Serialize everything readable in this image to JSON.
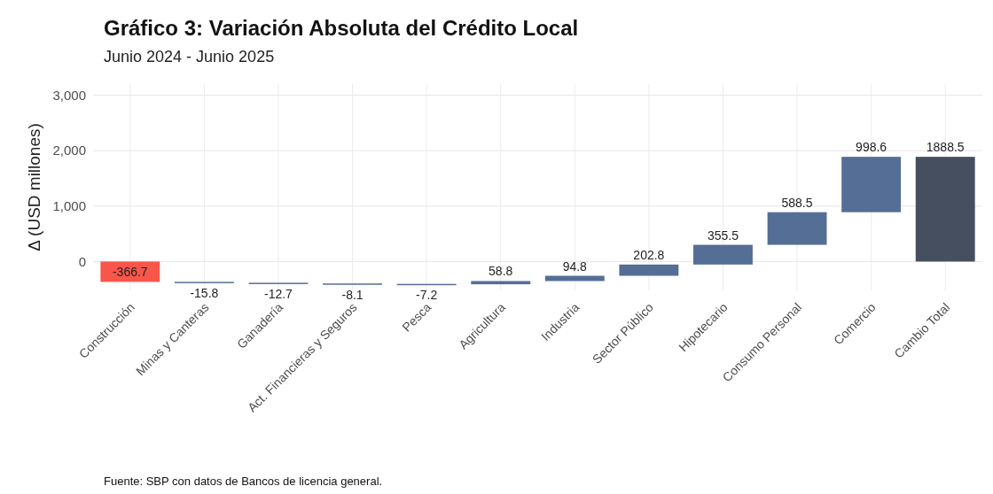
{
  "chart_data": {
    "type": "bar",
    "title": "Gráfico 3: Variación Absoluta del Crédito Local",
    "subtitle": "Junio 2024 - Junio 2025",
    "ylabel": "Δ (USD millones)",
    "categories": [
      "Construcción",
      "Minas y Canteras",
      "Ganadería",
      "Act. Financieras y Seguros",
      "Pesca",
      "Agricultura",
      "Industria",
      "Sector Público",
      "Hipotecario",
      "Consumo Personal",
      "Comercio",
      "Cambio Total"
    ],
    "values": [
      -366.7,
      -15.8,
      -12.7,
      -8.1,
      -7.2,
      58.8,
      94.8,
      202.8,
      355.5,
      588.5,
      998.6,
      1888.5
    ],
    "base": [
      0,
      -366.7,
      -382.5,
      -395.2,
      -403.3,
      -410.5,
      -351.7,
      -256.9,
      -54.1,
      301.4,
      889.9,
      0
    ],
    "colors": [
      "#f8564a",
      "#546e96",
      "#546e96",
      "#546e96",
      "#546e96",
      "#546e96",
      "#546e96",
      "#546e96",
      "#546e96",
      "#546e96",
      "#546e96",
      "#454f5f"
    ],
    "ylim": [
      -520,
      3200
    ],
    "yticks": [
      {
        "value": 0,
        "label": "0"
      },
      {
        "value": 1000,
        "label": "1,000"
      },
      {
        "value": 2000,
        "label": "2,000"
      },
      {
        "value": 3000,
        "label": "3,000"
      }
    ],
    "grid": true,
    "data_labels": true,
    "annotations": [
      "Fuente: SBP con datos de Bancos de licencia general."
    ]
  }
}
